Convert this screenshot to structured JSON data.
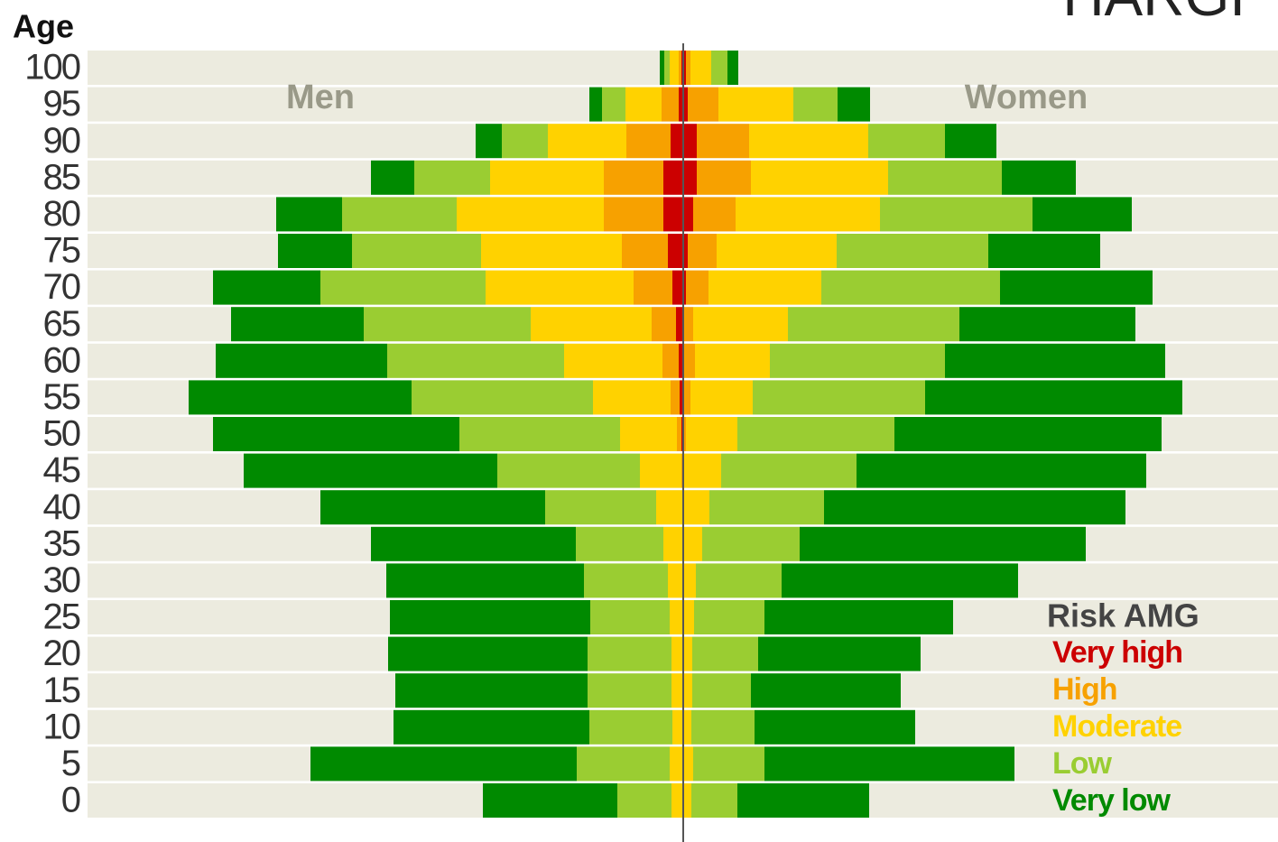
{
  "chart_data": {
    "type": "pyramid",
    "corner_text": "HARGI",
    "y_axis_label": "Age",
    "categories": [
      "100",
      "95",
      "90",
      "85",
      "80",
      "75",
      "70",
      "65",
      "60",
      "55",
      "50",
      "45",
      "40",
      "35",
      "30",
      "25",
      "20",
      "15",
      "10",
      "5",
      "0"
    ],
    "panels": [
      "Men",
      "Women"
    ],
    "legend_title": "Risk AMG",
    "series": [
      {
        "name": "Very high",
        "color": "#cc0000",
        "values": [
          [
            2,
            5,
            14,
            22,
            22,
            17,
            12,
            8,
            5,
            4,
            2,
            1,
            1,
            0,
            0,
            0,
            0,
            0,
            0,
            0,
            0
          ],
          [
            3,
            5,
            15,
            15,
            11,
            5,
            3,
            1,
            0,
            0,
            0,
            0,
            0,
            0,
            0,
            0,
            0,
            0,
            0,
            0,
            0
          ]
        ]
      },
      {
        "name": "High",
        "color": "#f7a100",
        "values": [
          [
            3,
            19,
            49,
            66,
            66,
            51,
            43,
            27,
            18,
            10,
            5,
            1,
            0,
            0,
            0,
            0,
            0,
            0,
            0,
            0,
            0
          ],
          [
            5,
            34,
            58,
            60,
            47,
            32,
            25,
            10,
            13,
            8,
            3,
            1,
            0,
            0,
            0,
            0,
            0,
            0,
            0,
            0,
            0
          ]
        ]
      },
      {
        "name": "Moderate",
        "color": "#ffd200",
        "values": [
          [
            10,
            40,
            87,
            126,
            163,
            156,
            164,
            134,
            109,
            86,
            63,
            46,
            29,
            22,
            17,
            15,
            13,
            13,
            12,
            15,
            13
          ],
          [
            23,
            83,
            132,
            152,
            160,
            133,
            125,
            105,
            83,
            69,
            57,
            41,
            29,
            21,
            14,
            12,
            10,
            10,
            9,
            11,
            9
          ]
        ]
      },
      {
        "name": "Low",
        "color": "#9acd32",
        "values": [
          [
            6,
            26,
            51,
            84,
            127,
            143,
            183,
            185,
            196,
            201,
            178,
            158,
            123,
            97,
            93,
            88,
            93,
            93,
            92,
            103,
            60
          ],
          [
            18,
            49,
            85,
            126,
            169,
            168,
            198,
            190,
            194,
            191,
            174,
            150,
            127,
            108,
            95,
            78,
            73,
            65,
            70,
            79,
            51
          ]
        ]
      },
      {
        "name": "Very low",
        "color": "#008a00",
        "values": [
          [
            5,
            14,
            29,
            48,
            73,
            82,
            119,
            147,
            190,
            247,
            273,
            281,
            249,
            227,
            219,
            222,
            221,
            213,
            217,
            295,
            149
          ],
          [
            12,
            36,
            57,
            82,
            110,
            124,
            169,
            195,
            244,
            285,
            296,
            321,
            334,
            317,
            262,
            209,
            180,
            166,
            178,
            277,
            146
          ]
        ]
      }
    ]
  }
}
